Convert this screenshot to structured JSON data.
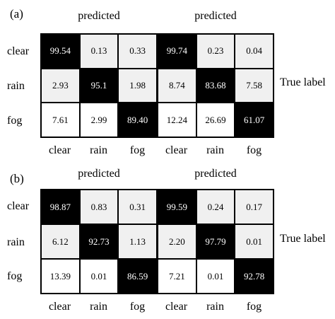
{
  "colors": {
    "high": "#000000",
    "mid": "#f0f0f0",
    "low": "#ffffff",
    "text_on_dark": "#ffffff",
    "text_on_light": "#000000"
  },
  "labels": {
    "panel_a": "(a)",
    "panel_b": "(b)",
    "predicted": "predicted",
    "true_label": "True label",
    "classes": [
      "clear",
      "rain",
      "fog"
    ]
  },
  "chart_data": [
    {
      "type": "heatmap",
      "title": "predicted",
      "ylabel": "True label",
      "rows": [
        "clear",
        "rain",
        "fog"
      ],
      "cols": [
        "clear",
        "rain",
        "fog"
      ],
      "values": [
        [
          "99.54",
          "0.13",
          "0.33"
        ],
        [
          "2.93",
          "95.1",
          "1.98"
        ],
        [
          "7.61",
          "2.99",
          "89.40"
        ]
      ]
    },
    {
      "type": "heatmap",
      "title": "predicted",
      "ylabel": "True label",
      "rows": [
        "clear",
        "rain",
        "fog"
      ],
      "cols": [
        "clear",
        "rain",
        "fog"
      ],
      "values": [
        [
          "99.74",
          "0.23",
          "0.04"
        ],
        [
          "8.74",
          "83.68",
          "7.58"
        ],
        [
          "12.24",
          "26.69",
          "61.07"
        ]
      ]
    },
    {
      "type": "heatmap",
      "title": "predicted",
      "ylabel": "True label",
      "rows": [
        "clear",
        "rain",
        "fog"
      ],
      "cols": [
        "clear",
        "rain",
        "fog"
      ],
      "values": [
        [
          "98.87",
          "0.83",
          "0.31"
        ],
        [
          "6.12",
          "92.73",
          "1.13"
        ],
        [
          "13.39",
          "0.01",
          "86.59"
        ]
      ]
    },
    {
      "type": "heatmap",
      "title": "predicted",
      "ylabel": "True label",
      "rows": [
        "clear",
        "rain",
        "fog"
      ],
      "cols": [
        "clear",
        "rain",
        "fog"
      ],
      "values": [
        [
          "99.59",
          "0.24",
          "0.17"
        ],
        [
          "2.20",
          "97.79",
          "0.01"
        ],
        [
          "7.21",
          "0.01",
          "92.78"
        ]
      ]
    }
  ]
}
